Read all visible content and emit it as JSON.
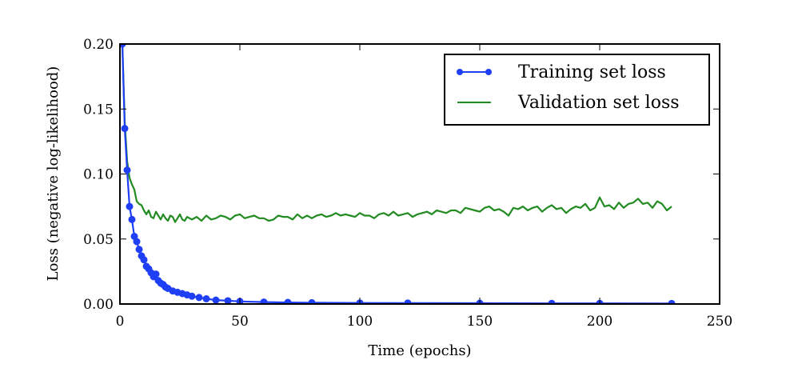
{
  "chart_data": {
    "type": "line",
    "xlabel": "Time (epochs)",
    "ylabel": "Loss (negative log-likelihood)",
    "xlim": [
      0,
      250
    ],
    "ylim": [
      0.0,
      0.2
    ],
    "x_ticks": [
      0,
      50,
      100,
      150,
      200,
      250
    ],
    "y_ticks": [
      0.0,
      0.05,
      0.1,
      0.15,
      0.2
    ],
    "x_tick_labels": [
      "0",
      "50",
      "100",
      "150",
      "200",
      "250"
    ],
    "y_tick_labels": [
      "0.00",
      "0.05",
      "0.10",
      "0.15",
      "0.20"
    ],
    "grid": false,
    "legend_position": "top-right",
    "series": [
      {
        "name": "Training set loss",
        "color": "#1f3ff5",
        "marker": "circle",
        "x": [
          1,
          2,
          3,
          4,
          5,
          6,
          7,
          8,
          9,
          10,
          11,
          12,
          13,
          14,
          15,
          16,
          17,
          18,
          19,
          20,
          22,
          24,
          26,
          28,
          30,
          33,
          36,
          40,
          45,
          50,
          60,
          70,
          80,
          100,
          120,
          150,
          180,
          200,
          230
        ],
        "values": [
          0.2,
          0.135,
          0.103,
          0.075,
          0.065,
          0.052,
          0.048,
          0.042,
          0.037,
          0.034,
          0.029,
          0.027,
          0.024,
          0.021,
          0.023,
          0.018,
          0.016,
          0.015,
          0.013,
          0.012,
          0.01,
          0.009,
          0.008,
          0.007,
          0.006,
          0.005,
          0.004,
          0.003,
          0.0025,
          0.002,
          0.0015,
          0.0012,
          0.001,
          0.0008,
          0.0007,
          0.0006,
          0.0005,
          0.0005,
          0.0004
        ]
      },
      {
        "name": "Validation set loss",
        "color": "#228b22",
        "marker": "none",
        "x": [
          1,
          2,
          3,
          4,
          5,
          6,
          7,
          8,
          9,
          10,
          11,
          12,
          13,
          14,
          15,
          16,
          17,
          18,
          19,
          20,
          21,
          22,
          23,
          24,
          25,
          26,
          27,
          28,
          29,
          30,
          32,
          34,
          36,
          38,
          40,
          42,
          44,
          46,
          48,
          50,
          52,
          54,
          56,
          58,
          60,
          62,
          64,
          66,
          68,
          70,
          72,
          74,
          76,
          78,
          80,
          82,
          84,
          86,
          88,
          90,
          92,
          94,
          96,
          98,
          100,
          102,
          104,
          106,
          108,
          110,
          112,
          114,
          116,
          118,
          120,
          122,
          124,
          126,
          128,
          130,
          132,
          134,
          136,
          138,
          140,
          142,
          144,
          146,
          148,
          150,
          152,
          154,
          156,
          158,
          160,
          162,
          164,
          166,
          168,
          170,
          172,
          174,
          176,
          178,
          180,
          182,
          184,
          186,
          188,
          190,
          192,
          194,
          196,
          198,
          200,
          202,
          204,
          206,
          208,
          210,
          212,
          214,
          216,
          218,
          220,
          222,
          224,
          226,
          228,
          230
        ],
        "values": [
          0.2,
          0.14,
          0.11,
          0.097,
          0.092,
          0.088,
          0.079,
          0.077,
          0.076,
          0.072,
          0.069,
          0.072,
          0.067,
          0.066,
          0.071,
          0.068,
          0.065,
          0.069,
          0.066,
          0.064,
          0.068,
          0.067,
          0.063,
          0.066,
          0.069,
          0.065,
          0.064,
          0.067,
          0.066,
          0.065,
          0.067,
          0.064,
          0.068,
          0.065,
          0.066,
          0.068,
          0.067,
          0.065,
          0.068,
          0.069,
          0.066,
          0.067,
          0.068,
          0.066,
          0.066,
          0.064,
          0.065,
          0.068,
          0.067,
          0.067,
          0.065,
          0.069,
          0.066,
          0.068,
          0.066,
          0.068,
          0.069,
          0.067,
          0.068,
          0.07,
          0.068,
          0.069,
          0.068,
          0.067,
          0.07,
          0.068,
          0.068,
          0.066,
          0.069,
          0.07,
          0.068,
          0.071,
          0.068,
          0.069,
          0.07,
          0.067,
          0.069,
          0.07,
          0.071,
          0.069,
          0.072,
          0.071,
          0.07,
          0.072,
          0.072,
          0.07,
          0.074,
          0.073,
          0.072,
          0.071,
          0.074,
          0.075,
          0.072,
          0.073,
          0.071,
          0.068,
          0.074,
          0.073,
          0.075,
          0.072,
          0.074,
          0.075,
          0.071,
          0.074,
          0.076,
          0.073,
          0.074,
          0.07,
          0.073,
          0.075,
          0.074,
          0.077,
          0.072,
          0.074,
          0.082,
          0.075,
          0.076,
          0.073,
          0.078,
          0.074,
          0.077,
          0.078,
          0.081,
          0.077,
          0.078,
          0.074,
          0.079,
          0.077,
          0.072,
          0.075
        ]
      }
    ]
  }
}
